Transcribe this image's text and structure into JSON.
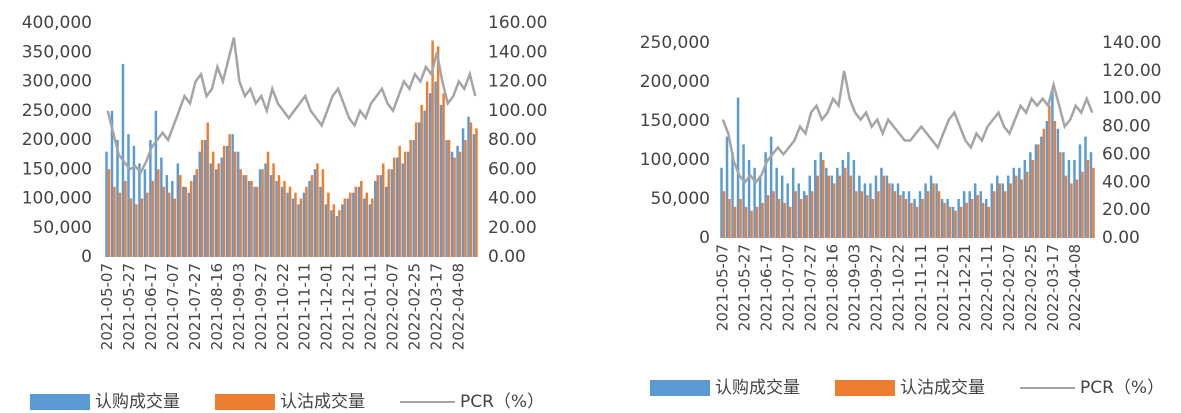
{
  "chart_data": [
    {
      "type": "bar",
      "categories": [
        "2021-05-07",
        null,
        null,
        null,
        "2021-05-27",
        null,
        null,
        null,
        "2021-06-17",
        null,
        null,
        null,
        "2021-07-07",
        null,
        null,
        null,
        "2021-07-27",
        null,
        null,
        null,
        "2021-08-16",
        null,
        null,
        null,
        "2021-09-03",
        null,
        null,
        null,
        "2021-09-27",
        null,
        null,
        null,
        "2021-10-22",
        null,
        null,
        null,
        "2021-11-11",
        null,
        null,
        null,
        "2021-12-01",
        null,
        null,
        null,
        "2021-12-21",
        null,
        null,
        null,
        "2022-01-11",
        null,
        null,
        null,
        "2022-02-07",
        null,
        null,
        null,
        "2022-02-25",
        null,
        null,
        null,
        "2022-03-17",
        null,
        null,
        null,
        "2022-04-08",
        null,
        null,
        null
      ],
      "ylim": [
        0,
        400000
      ],
      "yticks": [
        0,
        {
          "value": 50000,
          "label": "50,000"
        },
        {
          "value": 100000,
          "label": "100,000"
        },
        {
          "value": 150000,
          "label": "150,000"
        },
        {
          "value": 200000,
          "label": "200,000"
        },
        {
          "value": 250000,
          "label": "250,000"
        },
        {
          "value": 300000,
          "label": "300,000"
        },
        {
          "value": 350000,
          "label": "350,000"
        },
        {
          "value": 400000,
          "label": "400,000"
        }
      ],
      "y2lim": [
        0,
        160
      ],
      "y2ticks": [
        {
          "value": 0,
          "label": "0.00"
        },
        {
          "value": 20,
          "label": "20.00"
        },
        {
          "value": 40,
          "label": "40.00"
        },
        {
          "value": 60,
          "label": "60.00"
        },
        {
          "value": 80,
          "label": "80.00"
        },
        {
          "value": 100,
          "label": "100.00"
        },
        {
          "value": 120,
          "label": "120.00"
        },
        {
          "value": 140,
          "label": "140.00"
        },
        {
          "value": 160,
          "label": "160.00"
        }
      ],
      "series": [
        {
          "name": "认购成交量",
          "color": "#5b9bd5",
          "values": [
            180000,
            250000,
            200000,
            330000,
            210000,
            190000,
            160000,
            150000,
            200000,
            250000,
            170000,
            140000,
            130000,
            160000,
            120000,
            110000,
            140000,
            180000,
            200000,
            160000,
            150000,
            170000,
            190000,
            210000,
            180000,
            140000,
            130000,
            120000,
            150000,
            160000,
            140000,
            130000,
            120000,
            110000,
            100000,
            90000,
            110000,
            130000,
            150000,
            120000,
            90000,
            80000,
            70000,
            90000,
            100000,
            110000,
            120000,
            100000,
            90000,
            130000,
            140000,
            120000,
            150000,
            170000,
            160000,
            180000,
            200000,
            230000,
            250000,
            280000,
            300000,
            260000,
            200000,
            180000,
            190000,
            220000,
            240000,
            210000
          ]
        },
        {
          "name": "认沽成交量",
          "color": "#ed7d31",
          "values": [
            150000,
            120000,
            110000,
            130000,
            100000,
            90000,
            100000,
            110000,
            130000,
            150000,
            120000,
            110000,
            100000,
            140000,
            120000,
            130000,
            150000,
            200000,
            230000,
            180000,
            160000,
            190000,
            210000,
            180000,
            150000,
            140000,
            130000,
            120000,
            150000,
            180000,
            160000,
            140000,
            130000,
            120000,
            110000,
            100000,
            120000,
            140000,
            160000,
            150000,
            110000,
            90000,
            80000,
            100000,
            110000,
            120000,
            130000,
            110000,
            100000,
            140000,
            160000,
            150000,
            170000,
            190000,
            180000,
            200000,
            230000,
            260000,
            300000,
            370000,
            360000,
            280000,
            200000,
            170000,
            180000,
            200000,
            230000,
            220000
          ]
        },
        {
          "name": "PCR（%）",
          "color": "#a5a5a5",
          "type": "line",
          "axis": "y2",
          "values": [
            100,
            85,
            70,
            65,
            60,
            62,
            58,
            65,
            75,
            80,
            85,
            80,
            90,
            100,
            110,
            105,
            120,
            125,
            110,
            115,
            130,
            120,
            135,
            150,
            120,
            110,
            115,
            105,
            110,
            100,
            115,
            105,
            100,
            95,
            100,
            105,
            110,
            100,
            95,
            90,
            100,
            110,
            115,
            105,
            95,
            90,
            100,
            95,
            105,
            110,
            115,
            105,
            100,
            110,
            120,
            115,
            125,
            120,
            130,
            125,
            140,
            120,
            105,
            110,
            120,
            115,
            125,
            110
          ]
        }
      ]
    },
    {
      "type": "bar",
      "categories": [
        "2021-05-07",
        null,
        null,
        null,
        "2021-05-27",
        null,
        null,
        null,
        "2021-06-17",
        null,
        null,
        null,
        "2021-07-07",
        null,
        null,
        null,
        "2021-07-27",
        null,
        null,
        null,
        "2021-08-16",
        null,
        null,
        null,
        "2021-09-03",
        null,
        null,
        null,
        "2021-09-27",
        null,
        null,
        null,
        "2021-10-22",
        null,
        null,
        null,
        "2021-11-11",
        null,
        null,
        null,
        "2021-12-01",
        null,
        null,
        null,
        "2021-12-21",
        null,
        null,
        null,
        "2022-01-11",
        null,
        null,
        null,
        "2022-02-07",
        null,
        null,
        null,
        "2022-02-25",
        null,
        null,
        null,
        "2022-03-17",
        null,
        null,
        null,
        "2022-04-08",
        null,
        null,
        null
      ],
      "ylim": [
        0,
        250000
      ],
      "yticks": [
        0,
        {
          "value": 50000,
          "label": "50,000"
        },
        {
          "value": 100000,
          "label": "100,000"
        },
        {
          "value": 150000,
          "label": "150,000"
        },
        {
          "value": 200000,
          "label": "200,000"
        },
        {
          "value": 250000,
          "label": "250,000"
        }
      ],
      "y2lim": [
        0,
        140
      ],
      "y2ticks": [
        {
          "value": 0,
          "label": "0.00"
        },
        {
          "value": 20,
          "label": "20.00"
        },
        {
          "value": 40,
          "label": "40.00"
        },
        {
          "value": 60,
          "label": "60.00"
        },
        {
          "value": 80,
          "label": "80.00"
        },
        {
          "value": 100,
          "label": "100.00"
        },
        {
          "value": 120,
          "label": "120.00"
        },
        {
          "value": 140,
          "label": "140.00"
        }
      ],
      "series": [
        {
          "name": "认购成交量",
          "color": "#5b9bd5",
          "values": [
            90000,
            130000,
            110000,
            180000,
            120000,
            100000,
            90000,
            80000,
            110000,
            130000,
            90000,
            80000,
            70000,
            90000,
            70000,
            60000,
            80000,
            100000,
            110000,
            90000,
            80000,
            90000,
            100000,
            110000,
            100000,
            80000,
            70000,
            70000,
            80000,
            90000,
            80000,
            70000,
            70000,
            60000,
            60000,
            50000,
            60000,
            70000,
            80000,
            70000,
            50000,
            50000,
            40000,
            50000,
            60000,
            60000,
            70000,
            60000,
            50000,
            70000,
            80000,
            70000,
            80000,
            90000,
            90000,
            100000,
            110000,
            120000,
            130000,
            150000,
            190000,
            140000,
            110000,
            100000,
            100000,
            120000,
            130000,
            110000
          ]
        },
        {
          "name": "认沽成交量",
          "color": "#ed7d31",
          "values": [
            60000,
            50000,
            40000,
            50000,
            40000,
            35000,
            40000,
            45000,
            55000,
            60000,
            50000,
            45000,
            40000,
            60000,
            50000,
            55000,
            60000,
            80000,
            100000,
            80000,
            70000,
            80000,
            90000,
            80000,
            60000,
            60000,
            55000,
            50000,
            60000,
            80000,
            70000,
            60000,
            55000,
            50000,
            45000,
            40000,
            50000,
            60000,
            70000,
            60000,
            45000,
            40000,
            35000,
            40000,
            45000,
            50000,
            55000,
            45000,
            40000,
            60000,
            70000,
            60000,
            70000,
            80000,
            75000,
            85000,
            100000,
            120000,
            140000,
            170000,
            150000,
            110000,
            80000,
            70000,
            75000,
            85000,
            100000,
            90000
          ]
        },
        {
          "name": "PCR（%）",
          "color": "#a5a5a5",
          "type": "line",
          "axis": "y2",
          "values": [
            85,
            75,
            55,
            45,
            40,
            45,
            40,
            45,
            55,
            60,
            65,
            60,
            65,
            70,
            80,
            75,
            90,
            95,
            85,
            90,
            100,
            95,
            120,
            100,
            90,
            85,
            90,
            80,
            85,
            75,
            85,
            80,
            75,
            70,
            70,
            75,
            80,
            75,
            70,
            65,
            75,
            85,
            90,
            80,
            70,
            65,
            75,
            70,
            80,
            85,
            90,
            80,
            75,
            85,
            95,
            90,
            100,
            95,
            100,
            95,
            110,
            95,
            80,
            85,
            95,
            90,
            100,
            90
          ]
        }
      ]
    }
  ]
}
